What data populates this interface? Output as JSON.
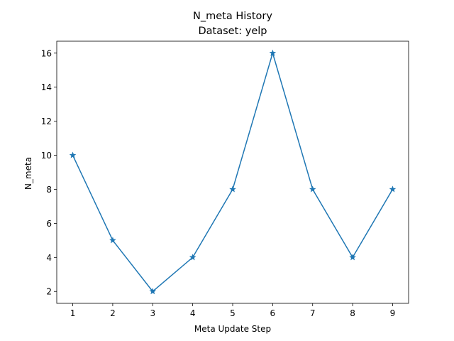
{
  "chart_data": {
    "type": "line",
    "title": "N_meta History",
    "subtitle": "Dataset: yelp",
    "xlabel": "Meta Update Step",
    "ylabel": "N_meta",
    "x": [
      1,
      2,
      3,
      4,
      5,
      6,
      7,
      8,
      9
    ],
    "series": [
      {
        "values": [
          10,
          5,
          2,
          4,
          8,
          16,
          8,
          4,
          8
        ],
        "color": "#1f77b4",
        "marker": "star"
      }
    ],
    "xlim": [
      0.6,
      9.4
    ],
    "ylim": [
      1.3,
      16.7
    ],
    "xticks": [
      "1",
      "2",
      "3",
      "4",
      "5",
      "6",
      "7",
      "8",
      "9"
    ],
    "yticks": [
      "2",
      "4",
      "6",
      "8",
      "10",
      "12",
      "14",
      "16"
    ],
    "grid": false,
    "legend": "none"
  }
}
